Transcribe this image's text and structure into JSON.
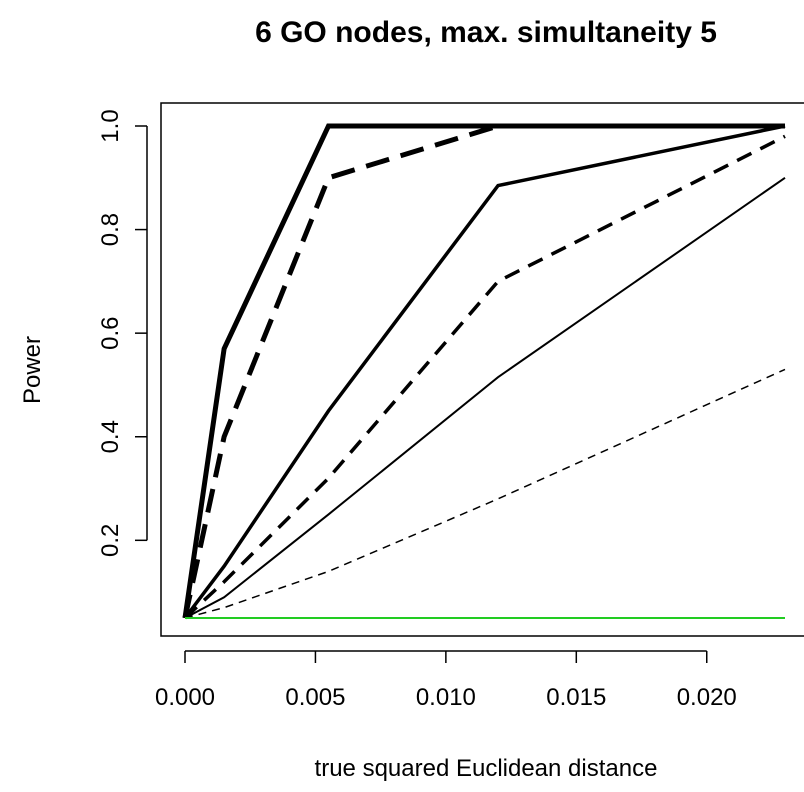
{
  "chart_data": {
    "type": "line",
    "title": "6 GO nodes, max. simultaneity 5",
    "xlabel": "true squared Euclidean distance",
    "ylabel": "Power",
    "xlim": [
      0,
      0.023
    ],
    "ylim": [
      0.05,
      1.0
    ],
    "x_ticks": [
      "0.000",
      "0.005",
      "0.010",
      "0.015",
      "0.020"
    ],
    "y_ticks": [
      "0.2",
      "0.4",
      "0.6",
      "0.8",
      "1.0"
    ],
    "grid": false,
    "series": [
      {
        "line_width": 5,
        "dash": "solid",
        "color": "#000000",
        "points": [
          [
            0,
            0.05
          ],
          [
            0.0015,
            0.57
          ],
          [
            0.0055,
            1.0
          ],
          [
            0.012,
            1.0
          ],
          [
            0.023,
            1.0
          ]
        ]
      },
      {
        "line_width": 5,
        "dash": "dashed",
        "color": "#000000",
        "points": [
          [
            0,
            0.05
          ],
          [
            0.0015,
            0.4
          ],
          [
            0.0055,
            0.9
          ],
          [
            0.012,
            1.0
          ],
          [
            0.023,
            1.0
          ]
        ]
      },
      {
        "line_width": 3.5,
        "dash": "solid",
        "color": "#000000",
        "points": [
          [
            0,
            0.05
          ],
          [
            0.0015,
            0.15
          ],
          [
            0.0055,
            0.45
          ],
          [
            0.012,
            0.885
          ],
          [
            0.023,
            1.0
          ]
        ]
      },
      {
        "line_width": 3.5,
        "dash": "dashed",
        "color": "#000000",
        "points": [
          [
            0,
            0.05
          ],
          [
            0.0015,
            0.12
          ],
          [
            0.0055,
            0.32
          ],
          [
            0.012,
            0.7
          ],
          [
            0.023,
            0.98
          ]
        ]
      },
      {
        "line_width": 2,
        "dash": "solid",
        "color": "#000000",
        "points": [
          [
            0,
            0.05
          ],
          [
            0.0015,
            0.09
          ],
          [
            0.0055,
            0.25
          ],
          [
            0.012,
            0.515
          ],
          [
            0.023,
            0.9
          ]
        ]
      },
      {
        "line_width": 1.5,
        "dash": "dashed",
        "color": "#000000",
        "points": [
          [
            0,
            0.05
          ],
          [
            0.0015,
            0.07
          ],
          [
            0.0055,
            0.14
          ],
          [
            0.012,
            0.28
          ],
          [
            0.023,
            0.53
          ]
        ]
      },
      {
        "line_width": 2,
        "dash": "solid",
        "color": "#22cc22",
        "points": [
          [
            0,
            0.05
          ],
          [
            0.023,
            0.05
          ]
        ]
      }
    ]
  }
}
